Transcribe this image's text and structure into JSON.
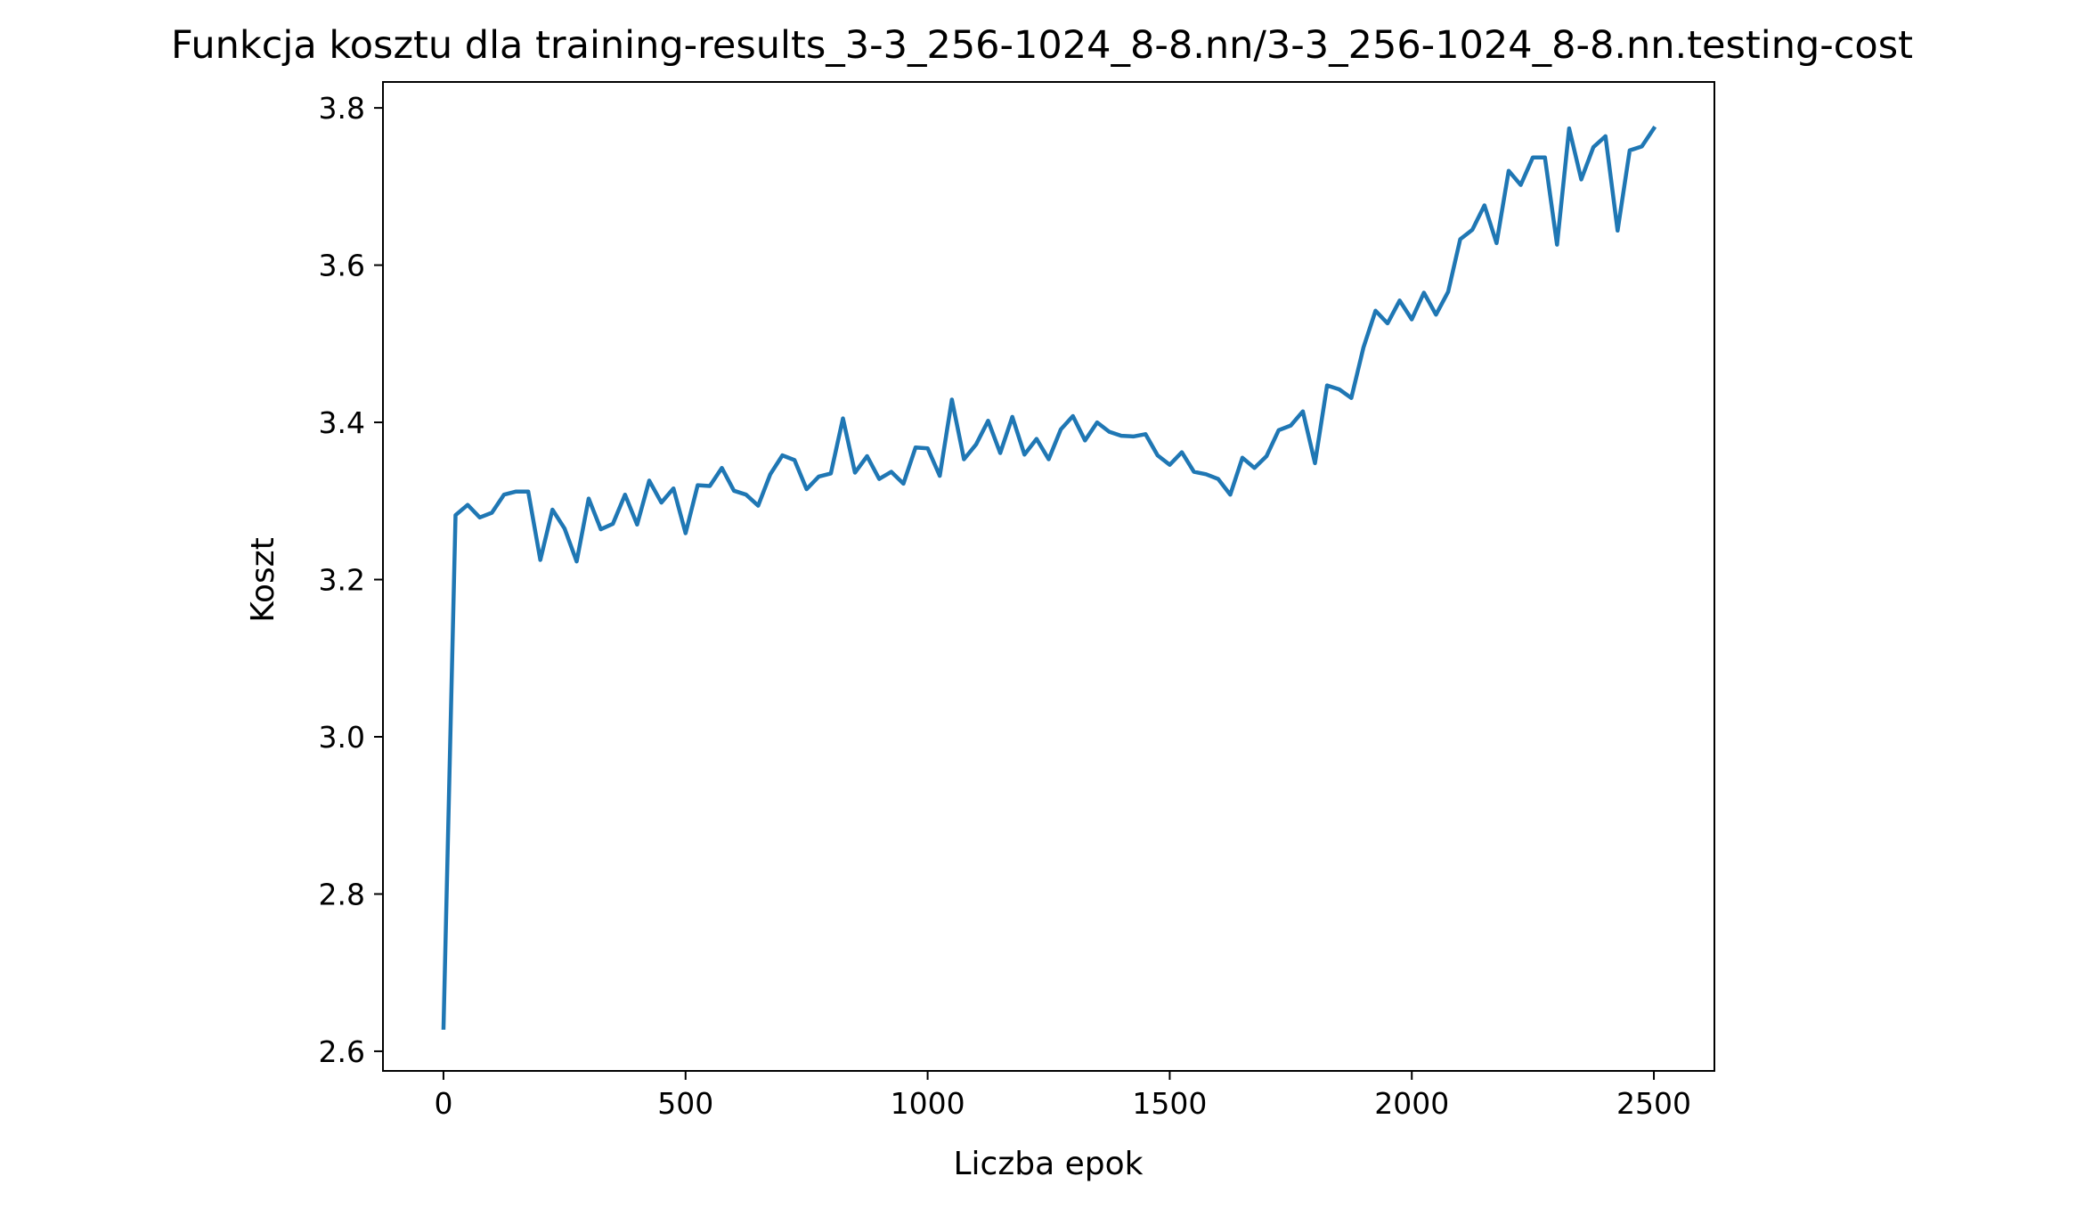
{
  "chart_data": {
    "type": "line",
    "title": "Funkcja kosztu dla training-results_3-3_256-1024_8-8.nn/3-3_256-1024_8-8.nn.testing-cost",
    "xlabel": "Liczba epok",
    "ylabel": "Koszt",
    "xlim": [
      -125,
      2625
    ],
    "ylim": [
      2.575,
      3.833
    ],
    "xticks": [
      0,
      500,
      1000,
      1500,
      2000,
      2500
    ],
    "xtick_labels": [
      "0",
      "500",
      "1000",
      "1500",
      "2000",
      "2500"
    ],
    "yticks": [
      2.6,
      2.8,
      3.0,
      3.2,
      3.4,
      3.6,
      3.8
    ],
    "ytick_labels": [
      "2.6",
      "2.8",
      "3.0",
      "3.2",
      "3.4",
      "3.6",
      "3.8"
    ],
    "grid": false,
    "line_color": "#1f77b4",
    "series": [
      {
        "x": [
          0,
          25,
          50,
          75,
          100,
          125,
          150,
          175,
          200,
          225,
          250,
          275,
          300,
          325,
          350,
          375,
          400,
          425,
          450,
          475,
          500,
          525,
          550,
          575,
          600,
          625,
          650,
          675,
          700,
          725,
          750,
          775,
          800,
          825,
          850,
          875,
          900,
          925,
          950,
          975,
          1000,
          1025,
          1050,
          1075,
          1100,
          1125,
          1150,
          1175,
          1200,
          1225,
          1250,
          1275,
          1300,
          1325,
          1350,
          1375,
          1400,
          1425,
          1450,
          1475,
          1500,
          1525,
          1550,
          1575,
          1600,
          1625,
          1650,
          1675,
          1700,
          1725,
          1750,
          1775,
          1800,
          1825,
          1850,
          1875,
          1900,
          1925,
          1950,
          1975,
          2000,
          2025,
          2050,
          2075,
          2100,
          2125,
          2150,
          2175,
          2200,
          2225,
          2250,
          2275,
          2300,
          2325,
          2350,
          2375,
          2400,
          2425,
          2450,
          2475,
          2500
        ],
        "y": [
          2.63,
          3.282,
          3.295,
          3.279,
          3.285,
          3.308,
          3.312,
          3.312,
          3.225,
          3.289,
          3.265,
          3.223,
          3.303,
          3.264,
          3.271,
          3.308,
          3.27,
          3.326,
          3.298,
          3.316,
          3.259,
          3.32,
          3.319,
          3.342,
          3.313,
          3.308,
          3.294,
          3.334,
          3.358,
          3.352,
          3.315,
          3.331,
          3.335,
          3.405,
          3.336,
          3.357,
          3.328,
          3.337,
          3.322,
          3.368,
          3.367,
          3.332,
          3.429,
          3.353,
          3.372,
          3.402,
          3.361,
          3.407,
          3.359,
          3.379,
          3.353,
          3.391,
          3.408,
          3.377,
          3.4,
          3.388,
          3.383,
          3.382,
          3.385,
          3.358,
          3.346,
          3.362,
          3.337,
          3.334,
          3.328,
          3.308,
          3.355,
          3.342,
          3.357,
          3.39,
          3.396,
          3.414,
          3.348,
          3.447,
          3.442,
          3.431,
          3.495,
          3.542,
          3.526,
          3.555,
          3.531,
          3.565,
          3.537,
          3.566,
          3.633,
          3.645,
          3.676,
          3.628,
          3.72,
          3.702,
          3.737,
          3.737,
          3.626,
          3.774,
          3.709,
          3.75,
          3.764,
          3.644,
          3.746,
          3.751,
          3.774
        ]
      }
    ]
  }
}
